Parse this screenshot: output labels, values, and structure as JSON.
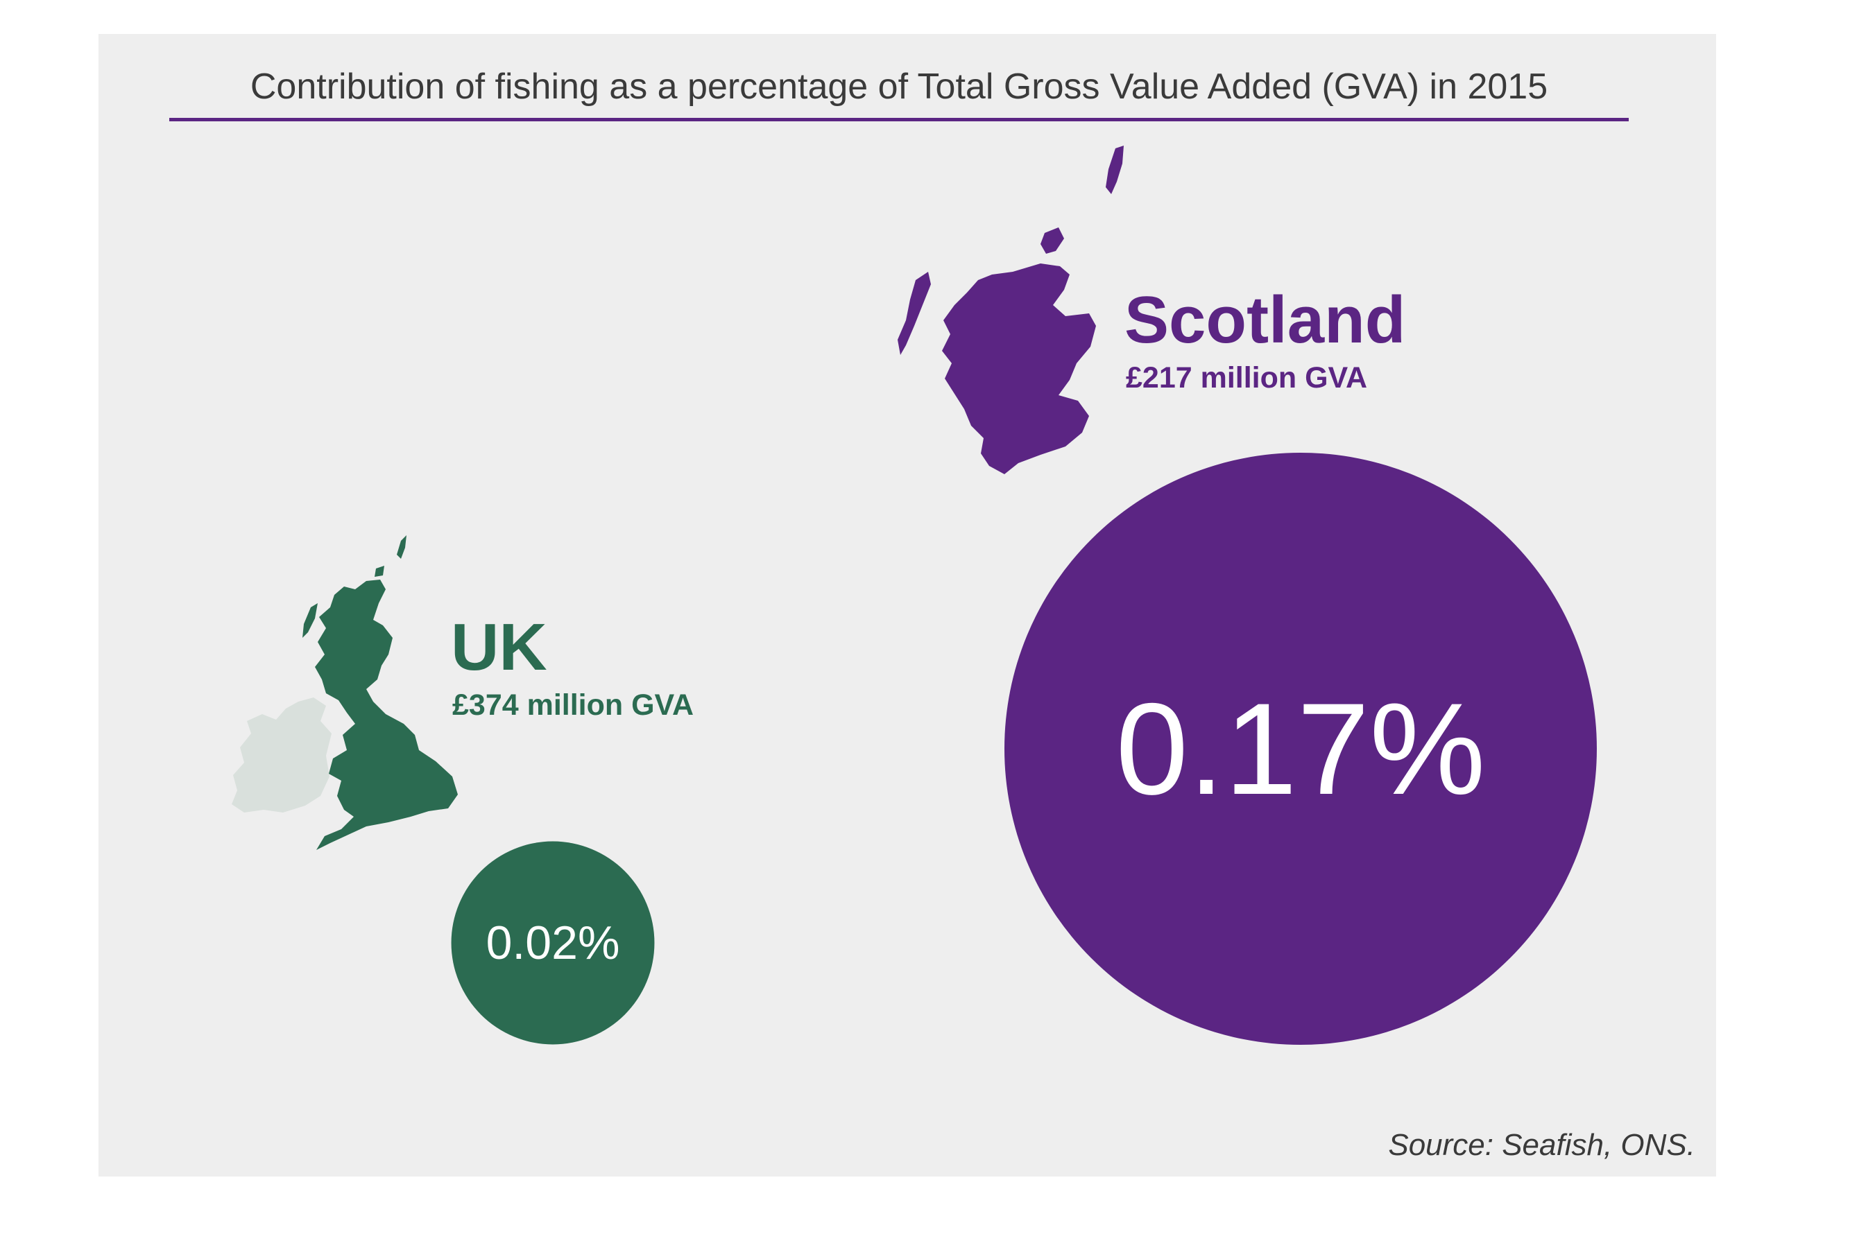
{
  "chart_data": {
    "type": "bubble",
    "title": "Contribution of fishing as a percentage of Total Gross Value Added (GVA) in 2015",
    "series": [
      {
        "name": "UK",
        "gva_label": "£374 million GVA",
        "gva_million_gbp": 374,
        "percent_value": 0.02,
        "percent_label": "0.02%",
        "color": "#2b6b51"
      },
      {
        "name": "Scotland",
        "gva_label": "£217 million GVA",
        "gva_million_gbp": 217,
        "percent_value": 0.17,
        "percent_label": "0.17%",
        "color": "#5b2583"
      }
    ],
    "source": "Source: Seafish, ONS."
  },
  "colors": {
    "background_panel": "#eeeeee",
    "uk_green": "#2b6b51",
    "scotland_purple": "#5b2583",
    "ireland_light": "#d9e0dc",
    "title_text": "#3a3a3a"
  },
  "icons": {
    "uk_map": "uk-map-icon",
    "scotland_map": "scotland-map-icon"
  }
}
